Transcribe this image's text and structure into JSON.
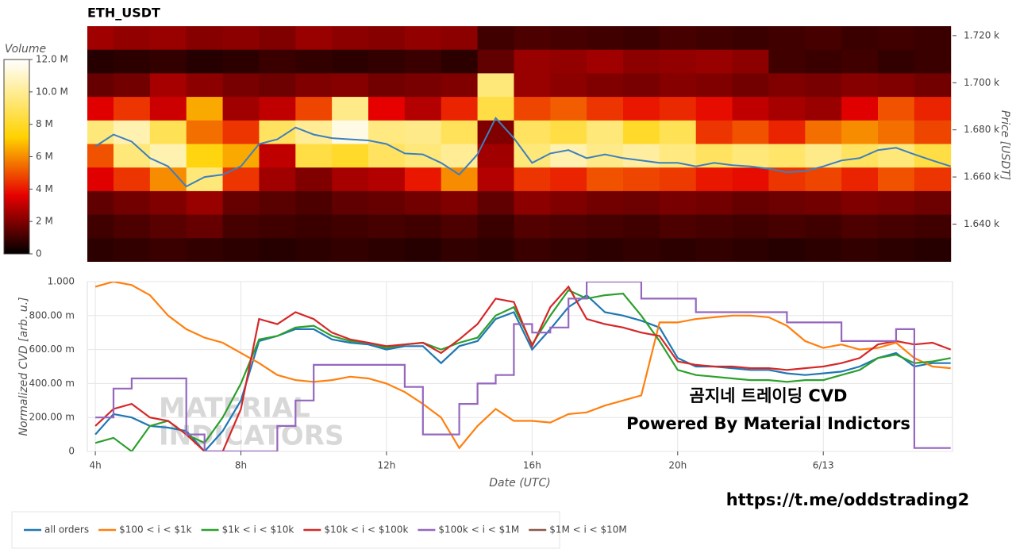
{
  "chart_data": [
    {
      "type": "heatmap",
      "title": "ETH_USDT",
      "ylabel": "Price [USDT]",
      "xlim": [
        3.78,
        27.55
      ],
      "ylim": [
        1624,
        1724
      ],
      "yticks": [
        {
          "value": 1720,
          "label": "1.720 k"
        },
        {
          "value": 1700,
          "label": "1.700 k"
        },
        {
          "value": 1680,
          "label": "1.680 k"
        },
        {
          "value": 1660,
          "label": "1.660 k"
        },
        {
          "value": 1640,
          "label": "1.640 k"
        }
      ],
      "colorscale": "hot",
      "colorbar_label": "Volume",
      "zlim": [
        0,
        12000000.0
      ],
      "colorbar_ticks": [
        0,
        {
          "value": 2000000.0,
          "label": "2 M"
        },
        {
          "value": 4000000.0,
          "label": "4 M"
        },
        {
          "value": 6000000.0,
          "label": "6 M"
        },
        {
          "value": 8000000.0,
          "label": "8 M"
        },
        {
          "value": 10000000.0,
          "label": "10.0 M"
        },
        {
          "value": 12000000.0,
          "label": "12.0 M"
        }
      ],
      "x": [
        4,
        5,
        6,
        7,
        8,
        9,
        10,
        11,
        12,
        13,
        14,
        15,
        16,
        17,
        18,
        19,
        20,
        21,
        22,
        23,
        24,
        25,
        26,
        27
      ],
      "y": [
        1719,
        1709,
        1699,
        1689,
        1679,
        1669,
        1659,
        1649,
        1639,
        1629
      ],
      "z": [
        [
          2500000.0,
          2300000.0,
          2400000.0,
          2100000.0,
          2200000.0,
          2000000.0,
          2400000.0,
          2200000.0,
          2100000.0,
          2300000.0,
          2200000.0,
          1000000.0,
          1200000.0,
          1100000.0,
          1000000.0,
          900000.0,
          1100000.0,
          1000000.0,
          900000.0,
          1000000.0,
          1100000.0,
          900000.0,
          1000000.0,
          900000.0
        ],
        [
          600000.0,
          700000.0,
          800000.0,
          600000.0,
          700000.0,
          900000.0,
          800000.0,
          700000.0,
          800000.0,
          900000.0,
          700000.0,
          1500000.0,
          2400000.0,
          2300000.0,
          2500000.0,
          2200000.0,
          2300000.0,
          2400000.0,
          2200000.0,
          1000000.0,
          900000.0,
          1000000.0,
          800000.0,
          900000.0
        ],
        [
          1600000.0,
          1800000.0,
          2600000.0,
          2200000.0,
          1900000.0,
          1700000.0,
          2000000.0,
          2100000.0,
          1800000.0,
          1900000.0,
          2000000.0,
          9500000.0,
          2400000.0,
          2200000.0,
          2000000.0,
          1900000.0,
          2100000.0,
          2000000.0,
          1800000.0,
          2000000.0,
          1900000.0,
          2100000.0,
          2000000.0,
          1800000.0
        ],
        [
          3500000.0,
          4500000.0,
          3200000.0,
          6500000.0,
          2500000.0,
          3000000.0,
          4800000.0,
          9800000.0,
          3600000.0,
          2800000.0,
          4200000.0,
          8500000.0,
          4800000.0,
          5200000.0,
          4500000.0,
          4000000.0,
          4300000.0,
          3800000.0,
          3000000.0,
          2600000.0,
          2400000.0,
          3500000.0,
          5000000.0,
          4200000.0
        ],
        [
          9500000.0,
          10500000.0,
          8800000.0,
          5500000.0,
          4500000.0,
          9000000.0,
          10000000.0,
          11500000.0,
          9600000.0,
          9800000.0,
          8900000.0,
          2000000.0,
          9000000.0,
          8500000.0,
          9500000.0,
          8000000.0,
          8800000.0,
          4500000.0,
          5000000.0,
          4200000.0,
          5500000.0,
          6000000.0,
          5500000.0,
          4800000.0
        ],
        [
          5000000.0,
          9500000.0,
          10500000.0,
          7500000.0,
          6500000.0,
          3000000.0,
          8500000.0,
          8000000.0,
          9000000.0,
          9500000.0,
          10000000.0,
          2500000.0,
          9500000.0,
          10500000.0,
          9800000.0,
          10200000.0,
          9600000.0,
          9000000.0,
          9500000.0,
          9200000.0,
          9800000.0,
          9000000.0,
          9500000.0,
          8500000.0
        ],
        [
          3500000.0,
          4500000.0,
          6000000.0,
          9500000.0,
          4500000.0,
          2500000.0,
          2000000.0,
          2600000.0,
          2800000.0,
          4000000.0,
          6000000.0,
          2800000.0,
          4500000.0,
          4200000.0,
          5000000.0,
          4800000.0,
          4600000.0,
          4000000.0,
          3800000.0,
          4500000.0,
          4800000.0,
          4200000.0,
          5000000.0,
          4500000.0
        ],
        [
          1500000.0,
          1800000.0,
          2000000.0,
          2400000.0,
          1600000.0,
          1400000.0,
          1200000.0,
          1500000.0,
          1600000.0,
          1800000.0,
          2000000.0,
          1500000.0,
          2200000.0,
          2000000.0,
          1800000.0,
          1700000.0,
          1900000.0,
          1800000.0,
          1600000.0,
          1700000.0,
          1800000.0,
          2000000.0,
          1900000.0,
          1700000.0
        ],
        [
          1000000.0,
          1200000.0,
          1400000.0,
          1600000.0,
          1100000.0,
          1000000.0,
          900000.0,
          1000000.0,
          1100000.0,
          1000000.0,
          1200000.0,
          900000.0,
          1300000.0,
          1200000.0,
          1100000.0,
          1000000.0,
          1200000.0,
          1100000.0,
          1000000.0,
          1100000.0,
          1000000.0,
          1200000.0,
          1100000.0,
          1000000.0
        ],
        [
          700000.0,
          800000.0,
          900000.0,
          800000.0,
          700000.0,
          600000.0,
          700000.0,
          800000.0,
          700000.0,
          600000.0,
          800000.0,
          700000.0,
          900000.0,
          800000.0,
          700000.0,
          800000.0,
          700000.0,
          800000.0,
          700000.0,
          600000.0,
          700000.0,
          800000.0,
          700000.0,
          600000.0
        ]
      ],
      "price_line": {
        "color": "#3d7fbf",
        "x": [
          4,
          4.5,
          5,
          5.5,
          6,
          6.5,
          7,
          7.5,
          8,
          8.5,
          9,
          9.5,
          10,
          10.5,
          11,
          11.5,
          12,
          12.5,
          13,
          13.5,
          14,
          14.5,
          15,
          15.5,
          16,
          16.5,
          17,
          17.5,
          18,
          18.5,
          19,
          19.5,
          20,
          20.5,
          21,
          21.5,
          22,
          22.5,
          23,
          23.5,
          24,
          24.5,
          25,
          25.5,
          26,
          26.5,
          27,
          27.5
        ],
        "values": [
          1673,
          1678,
          1675,
          1668,
          1664.5,
          1656,
          1660,
          1661,
          1664.5,
          1674,
          1676,
          1681,
          1678,
          1676.5,
          1676,
          1675.5,
          1674,
          1670,
          1669.6,
          1666,
          1661,
          1669.6,
          1685,
          1676.5,
          1666,
          1670,
          1671.4,
          1668,
          1669.6,
          1668,
          1667,
          1666,
          1666,
          1664.5,
          1666,
          1665,
          1664.5,
          1663.5,
          1662,
          1662.5,
          1664.5,
          1667,
          1668,
          1671.4,
          1672.4,
          1669.6,
          1667,
          1664.5
        ]
      }
    },
    {
      "type": "line",
      "xlabel": "Date (UTC)",
      "ylabel": "Normalized CVD [arb. u.]",
      "xlim": [
        3.78,
        27.55
      ],
      "xticks": [
        {
          "value": 4,
          "label": "4h"
        },
        {
          "value": 8,
          "label": "8h"
        },
        {
          "value": 12,
          "label": "12h"
        },
        {
          "value": 16,
          "label": "16h"
        },
        {
          "value": 20,
          "label": "20h"
        },
        {
          "value": 24,
          "label": "6/13"
        }
      ],
      "ylim": [
        0,
        1
      ],
      "yticks": [
        0,
        {
          "value": 0.2,
          "label": "200.00 m"
        },
        {
          "value": 0.4,
          "label": "400.00 m"
        },
        {
          "value": 0.6,
          "label": "600.00 m"
        },
        {
          "value": 0.8,
          "label": "800.00 m"
        },
        {
          "value": 1,
          "label": "1.000"
        }
      ],
      "grid": true,
      "legend": "bottom-left",
      "x": [
        4,
        4.5,
        5,
        5.5,
        6,
        6.5,
        7,
        7.5,
        8,
        8.5,
        9,
        9.5,
        10,
        10.5,
        11,
        11.5,
        12,
        12.5,
        13,
        13.5,
        14,
        14.5,
        15,
        15.5,
        16,
        16.5,
        17,
        17.5,
        18,
        18.5,
        19,
        19.5,
        20,
        20.5,
        21,
        21.5,
        22,
        22.5,
        23,
        23.5,
        24,
        24.5,
        25,
        25.5,
        26,
        26.5,
        27,
        27.5
      ],
      "series": [
        {
          "name": "all orders",
          "color": "#1f77b4",
          "values": [
            0.1,
            0.22,
            0.2,
            0.15,
            0.14,
            0.12,
            0.0,
            0.12,
            0.3,
            0.65,
            0.68,
            0.72,
            0.72,
            0.66,
            0.64,
            0.63,
            0.6,
            0.62,
            0.62,
            0.52,
            0.62,
            0.65,
            0.78,
            0.82,
            0.6,
            0.72,
            0.85,
            0.92,
            0.82,
            0.8,
            0.77,
            0.73,
            0.55,
            0.5,
            0.5,
            0.49,
            0.48,
            0.48,
            0.46,
            0.45,
            0.46,
            0.47,
            0.5,
            0.55,
            0.58,
            0.5,
            0.52,
            0.52
          ]
        },
        {
          "name": "$100 < i < $1k",
          "color": "#ff7f0e",
          "values": [
            0.97,
            1.0,
            0.98,
            0.92,
            0.8,
            0.72,
            0.67,
            0.64,
            0.58,
            0.52,
            0.45,
            0.42,
            0.41,
            0.42,
            0.44,
            0.43,
            0.4,
            0.35,
            0.28,
            0.2,
            0.02,
            0.15,
            0.25,
            0.18,
            0.18,
            0.17,
            0.22,
            0.23,
            0.27,
            0.3,
            0.33,
            0.76,
            0.76,
            0.78,
            0.79,
            0.8,
            0.8,
            0.79,
            0.74,
            0.65,
            0.61,
            0.63,
            0.6,
            0.61,
            0.64,
            0.55,
            0.5,
            0.49
          ]
        },
        {
          "name": "$1k < i < $10k",
          "color": "#2ca02c",
          "values": [
            0.05,
            0.08,
            0.0,
            0.15,
            0.18,
            0.1,
            0.05,
            0.2,
            0.4,
            0.66,
            0.68,
            0.73,
            0.74,
            0.68,
            0.65,
            0.64,
            0.61,
            0.63,
            0.64,
            0.6,
            0.64,
            0.67,
            0.8,
            0.85,
            0.63,
            0.8,
            0.95,
            0.9,
            0.92,
            0.93,
            0.8,
            0.65,
            0.48,
            0.45,
            0.44,
            0.43,
            0.42,
            0.42,
            0.41,
            0.42,
            0.42,
            0.45,
            0.48,
            0.55,
            0.57,
            0.52,
            0.53,
            0.55
          ]
        },
        {
          "name": "$10k < i < $100k",
          "color": "#d62728",
          "values": [
            0.15,
            0.25,
            0.28,
            0.2,
            0.18,
            0.1,
            0.0,
            0.0,
            0.25,
            0.78,
            0.75,
            0.82,
            0.78,
            0.7,
            0.66,
            0.64,
            0.62,
            0.63,
            0.64,
            0.58,
            0.66,
            0.75,
            0.9,
            0.88,
            0.62,
            0.85,
            0.97,
            0.78,
            0.75,
            0.73,
            0.7,
            0.68,
            0.53,
            0.51,
            0.5,
            0.5,
            0.49,
            0.49,
            0.48,
            0.49,
            0.5,
            0.52,
            0.55,
            0.63,
            0.65,
            0.63,
            0.64,
            0.6
          ]
        },
        {
          "name": "$100k < i < $1M",
          "color": "#9467bd",
          "step": true,
          "values": [
            0.2,
            0.37,
            0.43,
            0.43,
            0.43,
            0.1,
            0.0,
            0.0,
            0.0,
            0.0,
            0.15,
            0.3,
            0.51,
            0.51,
            0.51,
            0.51,
            0.51,
            0.38,
            0.1,
            0.1,
            0.28,
            0.4,
            0.45,
            0.75,
            0.7,
            0.73,
            0.9,
            1.0,
            1.0,
            1.0,
            0.9,
            0.9,
            0.9,
            0.82,
            0.82,
            0.82,
            0.82,
            0.82,
            0.76,
            0.76,
            0.76,
            0.65,
            0.65,
            0.65,
            0.72,
            0.02,
            0.02,
            0.02
          ]
        },
        {
          "name": "$1M < i < $10M",
          "color": "#8c564b",
          "values": [
            null,
            null,
            null,
            null,
            null,
            null,
            null,
            null,
            null,
            null,
            null,
            null,
            null,
            null,
            null,
            null,
            null,
            null,
            null,
            null,
            null,
            null,
            null,
            null,
            null,
            null,
            null,
            null,
            null,
            null,
            null,
            null,
            null,
            null,
            null,
            null,
            null,
            null,
            null,
            null,
            null,
            null,
            null,
            null,
            null,
            null,
            null,
            null
          ]
        }
      ],
      "watermark": [
        "MATERIAL",
        "INDICATORS"
      ],
      "annotations": [
        "곰지네 트레이딩 CVD",
        "Powered By Material Indictors",
        "https://t.me/oddstrading2"
      ]
    }
  ]
}
